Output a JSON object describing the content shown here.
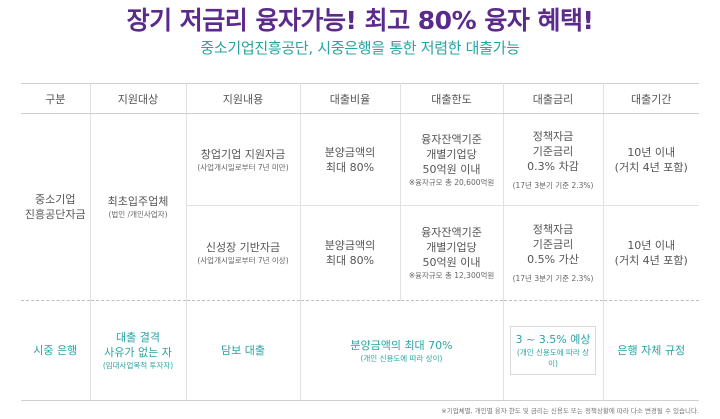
{
  "headline": "장기 저금리 융자가능! 최고 80% 융자 혜택!",
  "subhead": "중소기업진흥공단, 시중은행을 통한 저렴한 대출가능",
  "columns": [
    "구분",
    "지원대상",
    "지원내용",
    "대출비율",
    "대출한도",
    "대출금리",
    "대출기간"
  ],
  "sbc": {
    "category": [
      "중소기업",
      "진흥공단자금"
    ],
    "target": "최초입주업체",
    "target_note": "(법인 /개인사업자)",
    "rows": [
      {
        "content": "창업기업 지원자금",
        "content_note": "(사업개시일로부터 7년 미만)",
        "ratio": [
          "분양금액의",
          "최대 80%"
        ],
        "limit": [
          "융자잔액기준",
          "개별기업당",
          "50억원 이내"
        ],
        "limit_note": "※융자규모 총 20,600억원",
        "rate": [
          "정책자금",
          "기준금리",
          "0.3% 차감"
        ],
        "rate_note": "(17년 3분기 기준 2.3%)",
        "period": [
          "10년 이내",
          "(거치 4년 포함)"
        ]
      },
      {
        "content": "신성장 기반자금",
        "content_note": "(사업개시일로부터 7년 이상)",
        "ratio": [
          "분양금액의",
          "최대 80%"
        ],
        "limit": [
          "융자잔액기준",
          "개별기업당",
          "50억원 이내"
        ],
        "limit_note": "※융자규모 총 12,300억원",
        "rate": [
          "정책자금",
          "기준금리",
          "0.5% 가산"
        ],
        "rate_note": "(17년 3분기 기준 2.3%)",
        "period": [
          "10년 이내",
          "(거치 4년 포함)"
        ]
      }
    ]
  },
  "bank": {
    "category": "시중 은행",
    "target": [
      "대출 결격",
      "사유가 없는 자"
    ],
    "target_note": "(임대사업목적 투자자)",
    "content": "담보 대출",
    "ratio": "분양금액의 최대 70%",
    "ratio_note": "(개인 신용도에 따라 상이)",
    "rate": "3 ~ 3.5% 예상",
    "rate_note": "(개인 신용도에 따라 상이)",
    "period": "은행 자체 규정"
  },
  "footnote": "※기업체별, 개인별 융자 한도 및 금리는 신용도 또는 정책상황에 따라 다소 변경될 수 있습니다."
}
